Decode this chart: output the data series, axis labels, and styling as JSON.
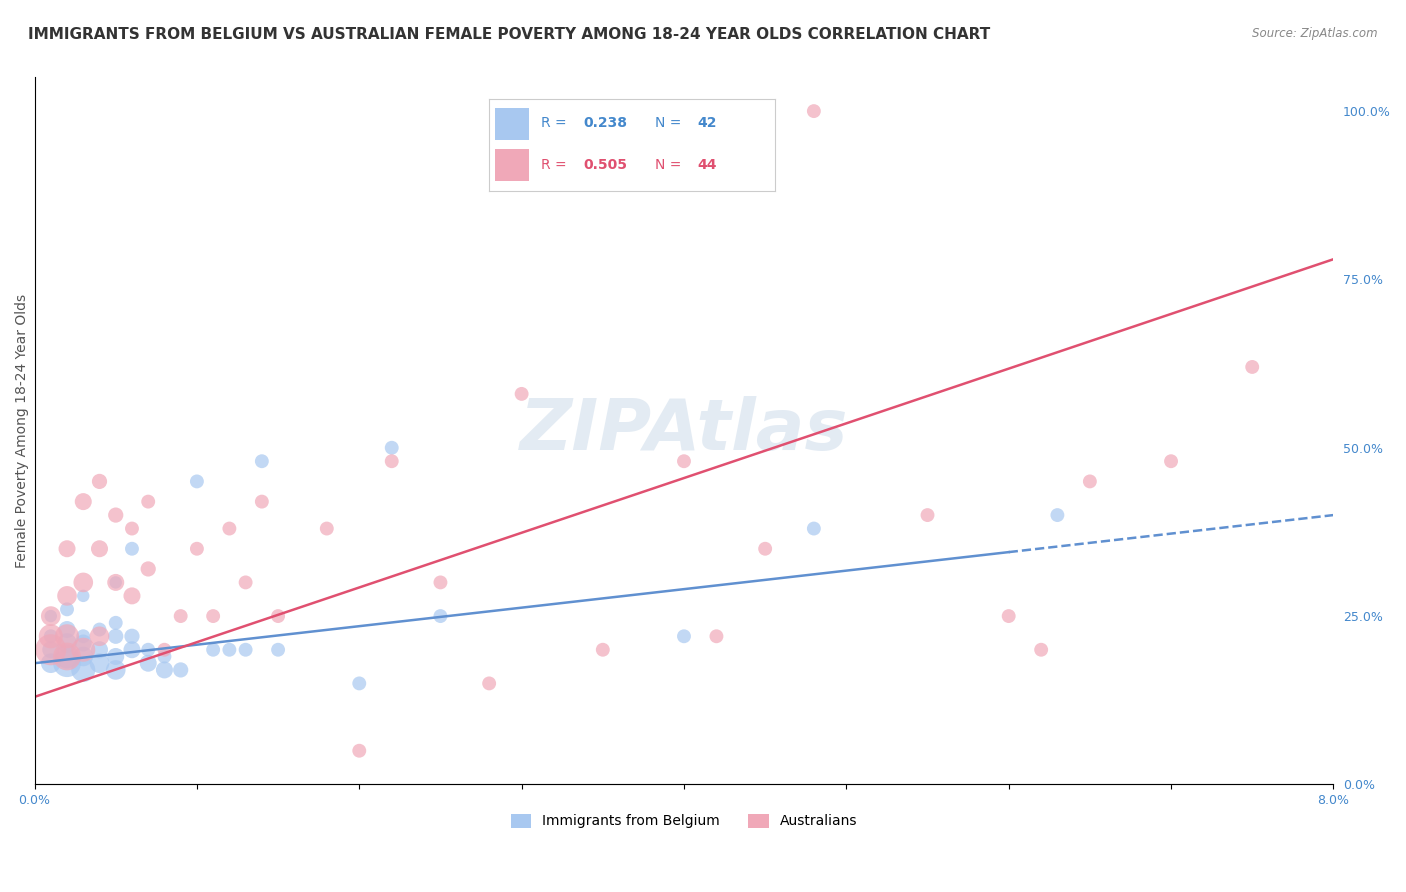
{
  "title": "IMMIGRANTS FROM BELGIUM VS AUSTRALIAN FEMALE POVERTY AMONG 18-24 YEAR OLDS CORRELATION CHART",
  "source": "Source: ZipAtlas.com",
  "xlabel": "",
  "ylabel": "Female Poverty Among 18-24 Year Olds",
  "xlim": [
    0.0,
    0.08
  ],
  "ylim": [
    0.0,
    1.05
  ],
  "xticks": [
    0.0,
    0.01,
    0.02,
    0.03,
    0.04,
    0.05,
    0.06,
    0.07,
    0.08
  ],
  "xticklabels": [
    "0.0%",
    "",
    "",
    "",
    "",
    "",
    "",
    "",
    "8.0%"
  ],
  "yticks_right": [
    0.0,
    0.25,
    0.5,
    0.75,
    1.0
  ],
  "yticklabels_right": [
    "0.0%",
    "25.0%",
    "50.0%",
    "75.0%",
    "100.0%"
  ],
  "legend_blue_r": "R = 0.238",
  "legend_blue_n": "N = 42",
  "legend_pink_r": "R = 0.505",
  "legend_pink_n": "N = 44",
  "blue_color": "#a8c8f0",
  "pink_color": "#f0a8b8",
  "blue_line_color": "#6090d0",
  "pink_line_color": "#e05070",
  "watermark": "ZIPAtlas",
  "blue_scatter_x": [
    0.001,
    0.001,
    0.001,
    0.001,
    0.002,
    0.002,
    0.002,
    0.002,
    0.002,
    0.003,
    0.003,
    0.003,
    0.003,
    0.003,
    0.004,
    0.004,
    0.004,
    0.005,
    0.005,
    0.005,
    0.005,
    0.005,
    0.006,
    0.006,
    0.006,
    0.007,
    0.007,
    0.008,
    0.008,
    0.009,
    0.01,
    0.011,
    0.012,
    0.013,
    0.014,
    0.015,
    0.02,
    0.022,
    0.025,
    0.04,
    0.048,
    0.063
  ],
  "blue_scatter_y": [
    0.18,
    0.2,
    0.22,
    0.25,
    0.18,
    0.19,
    0.21,
    0.23,
    0.26,
    0.17,
    0.19,
    0.21,
    0.22,
    0.28,
    0.18,
    0.2,
    0.23,
    0.17,
    0.19,
    0.22,
    0.24,
    0.3,
    0.2,
    0.22,
    0.35,
    0.18,
    0.2,
    0.17,
    0.19,
    0.17,
    0.45,
    0.2,
    0.2,
    0.2,
    0.48,
    0.2,
    0.15,
    0.5,
    0.25,
    0.22,
    0.38,
    0.4
  ],
  "blue_scatter_sizes": [
    200,
    150,
    100,
    80,
    400,
    300,
    200,
    150,
    100,
    300,
    200,
    150,
    100,
    80,
    200,
    150,
    100,
    200,
    150,
    120,
    100,
    80,
    150,
    120,
    100,
    150,
    100,
    150,
    100,
    120,
    100,
    100,
    100,
    100,
    100,
    100,
    100,
    100,
    100,
    100,
    100,
    100
  ],
  "pink_scatter_x": [
    0.001,
    0.001,
    0.001,
    0.002,
    0.002,
    0.002,
    0.002,
    0.003,
    0.003,
    0.003,
    0.004,
    0.004,
    0.004,
    0.005,
    0.005,
    0.006,
    0.006,
    0.007,
    0.007,
    0.008,
    0.009,
    0.01,
    0.011,
    0.012,
    0.013,
    0.014,
    0.015,
    0.018,
    0.02,
    0.022,
    0.025,
    0.028,
    0.03,
    0.035,
    0.04,
    0.042,
    0.045,
    0.048,
    0.055,
    0.06,
    0.062,
    0.065,
    0.07,
    0.075
  ],
  "pink_scatter_y": [
    0.2,
    0.22,
    0.25,
    0.19,
    0.22,
    0.28,
    0.35,
    0.2,
    0.3,
    0.42,
    0.22,
    0.35,
    0.45,
    0.3,
    0.4,
    0.28,
    0.38,
    0.32,
    0.42,
    0.2,
    0.25,
    0.35,
    0.25,
    0.38,
    0.3,
    0.42,
    0.25,
    0.38,
    0.05,
    0.48,
    0.3,
    0.15,
    0.58,
    0.2,
    0.48,
    0.22,
    0.35,
    1.0,
    0.4,
    0.25,
    0.2,
    0.45,
    0.48,
    0.62
  ],
  "pink_scatter_sizes": [
    500,
    300,
    200,
    400,
    300,
    200,
    150,
    300,
    200,
    150,
    200,
    150,
    120,
    150,
    120,
    150,
    100,
    120,
    100,
    100,
    100,
    100,
    100,
    100,
    100,
    100,
    100,
    100,
    100,
    100,
    100,
    100,
    100,
    100,
    100,
    100,
    100,
    100,
    100,
    100,
    100,
    100,
    100,
    100
  ],
  "blue_trend_x": [
    0.0,
    0.08
  ],
  "blue_trend_y": [
    0.18,
    0.4
  ],
  "pink_trend_x": [
    0.0,
    0.08
  ],
  "pink_trend_y": [
    0.13,
    0.78
  ],
  "title_fontsize": 11,
  "axis_label_fontsize": 10,
  "tick_fontsize": 9,
  "legend_fontsize": 11,
  "background_color": "#ffffff",
  "grid_color": "#cccccc"
}
